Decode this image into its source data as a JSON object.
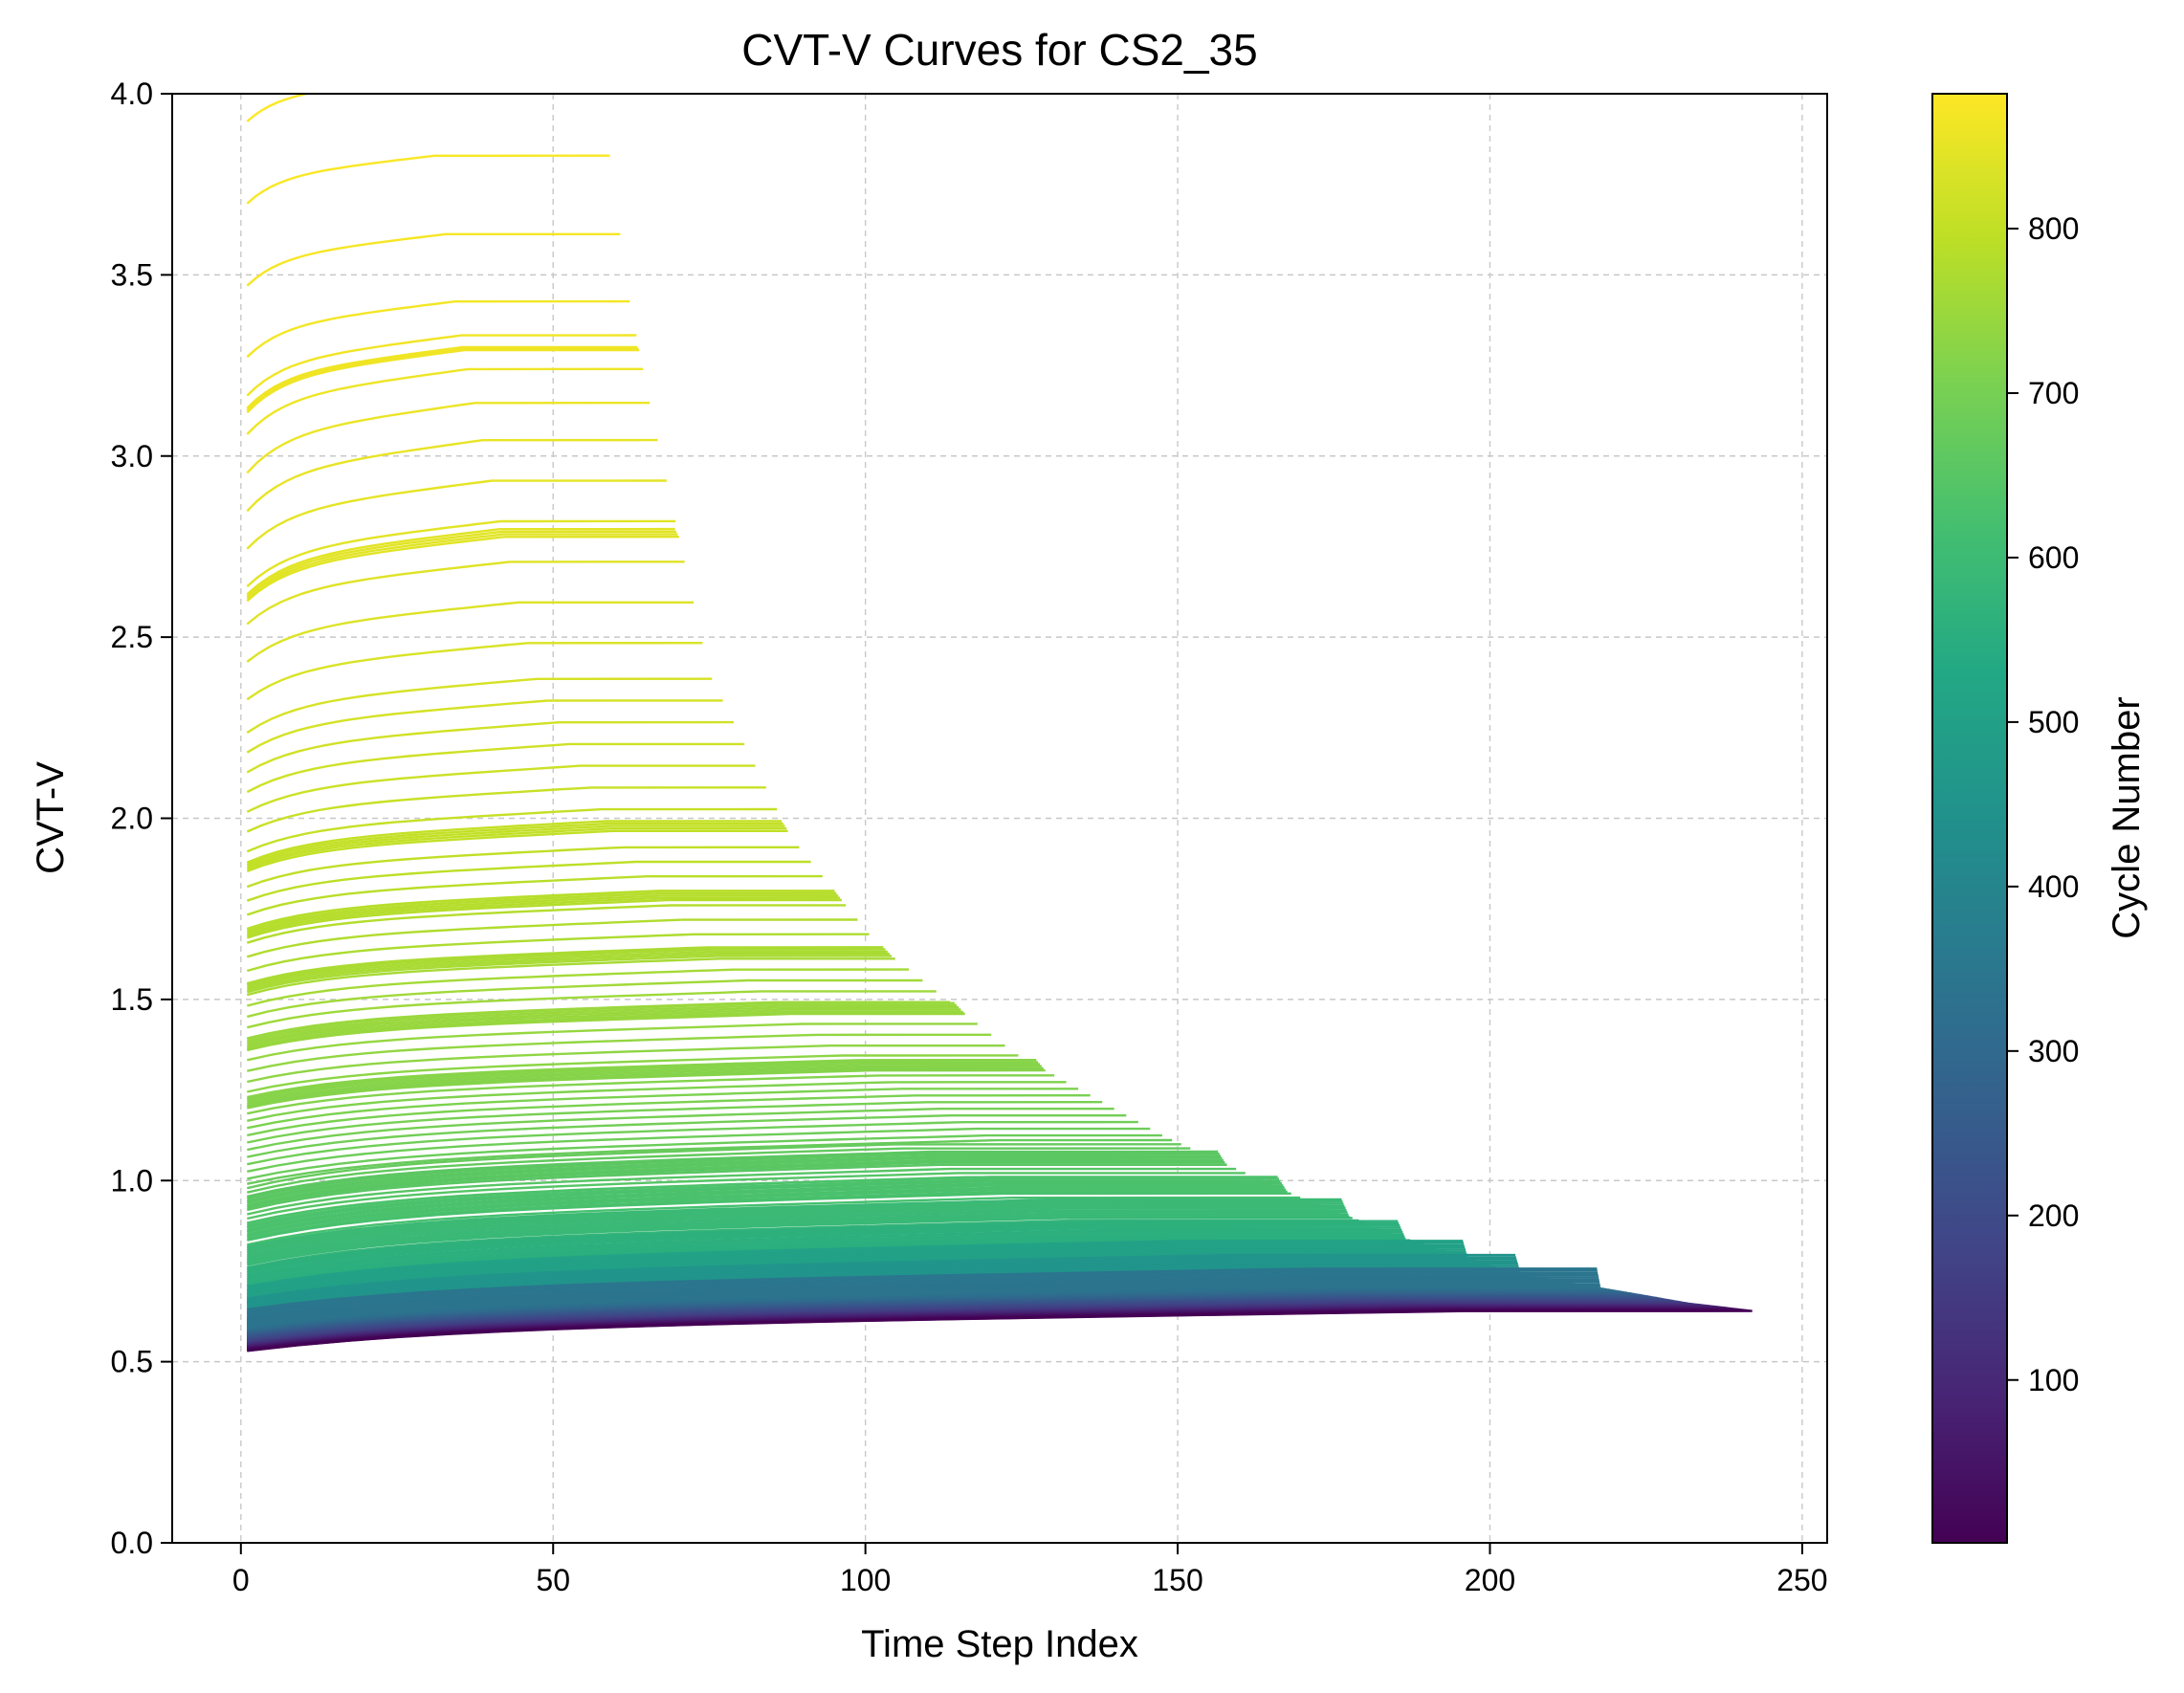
{
  "chart_data": {
    "type": "line",
    "title": "CVT-V Curves for CS2_35",
    "xlabel": "Time Step Index",
    "ylabel": "CVT-V",
    "xlim": [
      -11,
      254
    ],
    "ylim": [
      0.0,
      4.0
    ],
    "x_ticks": [
      "0",
      "50",
      "100",
      "150",
      "200",
      "250"
    ],
    "x_tick_values": [
      0,
      50,
      100,
      150,
      200,
      250
    ],
    "y_ticks": [
      "0.0",
      "0.5",
      "1.0",
      "1.5",
      "2.0",
      "2.5",
      "3.0",
      "3.5",
      "4.0"
    ],
    "y_tick_values": [
      0.0,
      0.5,
      1.0,
      1.5,
      2.0,
      2.5,
      3.0,
      3.5,
      4.0
    ],
    "grid": true,
    "colormap": "viridis",
    "colorbar": {
      "label": "Cycle Number",
      "range": [
        1,
        882
      ],
      "ticks": [
        "100",
        "200",
        "300",
        "400",
        "500",
        "600",
        "700",
        "800"
      ],
      "tick_values": [
        100,
        200,
        300,
        400,
        500,
        600,
        700,
        800
      ]
    },
    "series_summary": "One line per cycle (cycles 1 to ~882). Each line starts near x=1 at value y_start, rises over the first ~10 steps, grows slowly until a knee, then stays flat until its last time step x_end. y_start increases and x_end decreases with cycle number.",
    "envelope_points": [
      {
        "cycle": 1,
        "y_start": 0.53,
        "y_end": 0.64,
        "x_end": 242
      },
      {
        "cycle": 150,
        "y_start": 0.55,
        "y_end": 0.66,
        "x_end": 232
      },
      {
        "cycle": 300,
        "y_start": 0.58,
        "y_end": 0.69,
        "x_end": 222
      },
      {
        "cycle": 450,
        "y_start": 0.62,
        "y_end": 0.74,
        "x_end": 205
      },
      {
        "cycle": 550,
        "y_start": 0.7,
        "y_end": 0.83,
        "x_end": 188
      },
      {
        "cycle": 620,
        "y_start": 0.82,
        "y_end": 0.95,
        "x_end": 170
      },
      {
        "cycle": 680,
        "y_start": 1.0,
        "y_end": 1.12,
        "x_end": 148
      },
      {
        "cycle": 730,
        "y_start": 1.25,
        "y_end": 1.35,
        "x_end": 124
      },
      {
        "cycle": 770,
        "y_start": 1.55,
        "y_end": 1.65,
        "x_end": 102
      },
      {
        "cycle": 800,
        "y_start": 1.84,
        "y_end": 1.95,
        "x_end": 88
      },
      {
        "cycle": 830,
        "y_start": 2.25,
        "y_end": 2.4,
        "x_end": 75
      },
      {
        "cycle": 855,
        "y_start": 2.9,
        "y_end": 3.1,
        "x_end": 66
      },
      {
        "cycle": 870,
        "y_start": 3.3,
        "y_end": 3.45,
        "x_end": 62
      },
      {
        "cycle": 882,
        "y_start": 3.98,
        "y_end": 4.1,
        "x_end": 57
      }
    ],
    "flat_clusters": [
      {
        "y_start": 0.59,
        "count": 10
      },
      {
        "y_start": 0.62,
        "count": 10
      },
      {
        "y_start": 0.66,
        "count": 9
      },
      {
        "y_start": 0.71,
        "count": 9
      },
      {
        "y_start": 0.77,
        "count": 9
      },
      {
        "y_start": 0.84,
        "count": 8
      },
      {
        "y_start": 0.92,
        "count": 7
      },
      {
        "y_start": 1.2,
        "count": 6
      },
      {
        "y_start": 1.36,
        "count": 6
      },
      {
        "y_start": 1.52,
        "count": 5
      },
      {
        "y_start": 1.67,
        "count": 5
      },
      {
        "y_start": 1.86,
        "count": 4
      },
      {
        "y_start": 2.6,
        "count": 4
      },
      {
        "y_start": 3.12,
        "count": 3
      }
    ]
  }
}
